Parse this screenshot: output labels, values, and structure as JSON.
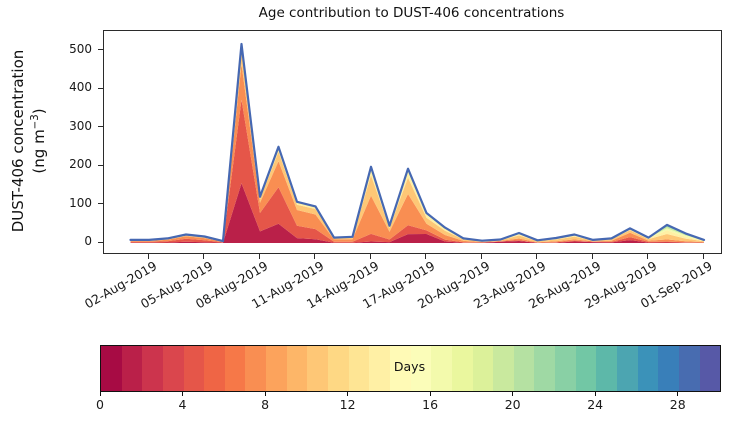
{
  "title": "Age contribution to DUST-406 concentrations",
  "ylabel": {
    "line1": "DUST-406 concentration",
    "unit_pre": "(ng m",
    "unit_sup": "−3",
    "unit_post": ")"
  },
  "chart_data": {
    "type": "area",
    "stacked": true,
    "title": "Age contribution to DUST-406 concentrations",
    "xlabel": "",
    "ylabel": "DUST-406 concentration (ng m⁻³)",
    "grid": false,
    "x": [
      "01-Aug-2019",
      "02-Aug-2019",
      "03-Aug-2019",
      "04-Aug-2019",
      "05-Aug-2019",
      "06-Aug-2019",
      "07-Aug-2019",
      "08-Aug-2019",
      "09-Aug-2019",
      "10-Aug-2019",
      "11-Aug-2019",
      "12-Aug-2019",
      "13-Aug-2019",
      "14-Aug-2019",
      "15-Aug-2019",
      "16-Aug-2019",
      "17-Aug-2019",
      "18-Aug-2019",
      "19-Aug-2019",
      "20-Aug-2019",
      "21-Aug-2019",
      "22-Aug-2019",
      "23-Aug-2019",
      "24-Aug-2019",
      "25-Aug-2019",
      "26-Aug-2019",
      "27-Aug-2019",
      "28-Aug-2019",
      "29-Aug-2019",
      "30-Aug-2019",
      "31-Aug-2019",
      "01-Sep-2019"
    ],
    "x_tick_labels": [
      "02-Aug-2019",
      "05-Aug-2019",
      "08-Aug-2019",
      "11-Aug-2019",
      "14-Aug-2019",
      "17-Aug-2019",
      "20-Aug-2019",
      "23-Aug-2019",
      "26-Aug-2019",
      "29-Aug-2019",
      "01-Sep-2019"
    ],
    "x_tick_indices": [
      1,
      4,
      7,
      10,
      13,
      16,
      19,
      22,
      25,
      28,
      31
    ],
    "x_tick_rotation_deg": 30,
    "yticks": [
      0,
      100,
      200,
      300,
      400,
      500
    ],
    "ylim": [
      -25,
      556
    ],
    "totals": [
      8,
      8,
      12,
      22,
      17,
      5,
      517,
      120,
      250,
      107,
      95,
      14,
      16,
      198,
      45,
      193,
      78,
      40,
      12,
      6,
      9,
      26,
      7,
      13,
      22,
      8,
      12,
      38,
      14,
      47,
      25,
      8
    ],
    "total_line_color": "#4668b2",
    "age_bin_edges_days": [
      0,
      3,
      6,
      9,
      12,
      15,
      18,
      21,
      24,
      27,
      30
    ],
    "age_fractions": [
      [
        0.1,
        0.25,
        0.3,
        0.2,
        0.1,
        0.05,
        0,
        0,
        0,
        0
      ],
      [
        0.1,
        0.25,
        0.3,
        0.2,
        0.1,
        0.05,
        0,
        0,
        0,
        0
      ],
      [
        0.1,
        0.3,
        0.3,
        0.2,
        0.05,
        0.05,
        0,
        0,
        0,
        0
      ],
      [
        0.15,
        0.35,
        0.3,
        0.12,
        0.05,
        0.03,
        0,
        0,
        0,
        0
      ],
      [
        0.12,
        0.3,
        0.33,
        0.15,
        0.06,
        0.04,
        0,
        0,
        0,
        0
      ],
      [
        0.1,
        0.25,
        0.35,
        0.2,
        0.06,
        0.04,
        0,
        0,
        0,
        0
      ],
      [
        0.3,
        0.42,
        0.18,
        0.06,
        0.03,
        0.01,
        0,
        0,
        0,
        0
      ],
      [
        0.25,
        0.4,
        0.22,
        0.08,
        0.04,
        0.01,
        0,
        0,
        0,
        0
      ],
      [
        0.2,
        0.38,
        0.27,
        0.1,
        0.04,
        0.01,
        0,
        0,
        0,
        0
      ],
      [
        0.12,
        0.3,
        0.38,
        0.13,
        0.05,
        0.02,
        0,
        0,
        0,
        0
      ],
      [
        0.1,
        0.28,
        0.4,
        0.15,
        0.05,
        0.02,
        0,
        0,
        0,
        0
      ],
      [
        0.05,
        0.2,
        0.4,
        0.2,
        0.1,
        0.05,
        0,
        0,
        0,
        0
      ],
      [
        0.05,
        0.15,
        0.4,
        0.25,
        0.1,
        0.05,
        0,
        0,
        0,
        0
      ],
      [
        0.02,
        0.1,
        0.5,
        0.27,
        0.06,
        0.03,
        0.01,
        0.01,
        0,
        0
      ],
      [
        0.05,
        0.15,
        0.45,
        0.22,
        0.07,
        0.03,
        0.02,
        0.01,
        0,
        0
      ],
      [
        0.12,
        0.12,
        0.42,
        0.22,
        0.07,
        0.03,
        0.01,
        0.01,
        0,
        0
      ],
      [
        0.3,
        0.12,
        0.22,
        0.2,
        0.1,
        0.04,
        0.01,
        0.01,
        0,
        0
      ],
      [
        0.1,
        0.12,
        0.3,
        0.28,
        0.12,
        0.05,
        0.02,
        0.01,
        0,
        0
      ],
      [
        0.06,
        0.1,
        0.3,
        0.3,
        0.14,
        0.06,
        0.03,
        0.01,
        0,
        0
      ],
      [
        0.1,
        0.1,
        0.25,
        0.3,
        0.15,
        0.06,
        0.03,
        0.01,
        0,
        0
      ],
      [
        0.35,
        0.1,
        0.15,
        0.2,
        0.12,
        0.05,
        0.02,
        0.01,
        0,
        0
      ],
      [
        0.2,
        0.08,
        0.17,
        0.3,
        0.13,
        0.07,
        0.03,
        0.02,
        0,
        0
      ],
      [
        0.05,
        0.08,
        0.17,
        0.4,
        0.2,
        0.06,
        0.02,
        0.02,
        0,
        0
      ],
      [
        0.05,
        0.08,
        0.2,
        0.37,
        0.2,
        0.06,
        0.02,
        0.02,
        0,
        0
      ],
      [
        0.18,
        0.1,
        0.15,
        0.32,
        0.13,
        0.07,
        0.03,
        0.02,
        0,
        0
      ],
      [
        0.3,
        0.12,
        0.15,
        0.23,
        0.12,
        0.05,
        0.02,
        0.01,
        0,
        0
      ],
      [
        0.12,
        0.12,
        0.25,
        0.28,
        0.14,
        0.05,
        0.02,
        0.02,
        0,
        0
      ],
      [
        0.2,
        0.2,
        0.3,
        0.18,
        0.07,
        0.03,
        0.01,
        0.01,
        0,
        0
      ],
      [
        0.08,
        0.12,
        0.22,
        0.3,
        0.15,
        0.08,
        0.03,
        0.02,
        0,
        0
      ],
      [
        0.03,
        0.05,
        0.12,
        0.3,
        0.2,
        0.12,
        0.08,
        0.05,
        0.03,
        0.02
      ],
      [
        0.03,
        0.05,
        0.1,
        0.28,
        0.2,
        0.13,
        0.09,
        0.06,
        0.04,
        0.02
      ],
      [
        0.05,
        0.08,
        0.15,
        0.3,
        0.18,
        0.1,
        0.06,
        0.04,
        0.02,
        0.02
      ]
    ],
    "colormap_anchors": [
      "#9e0142",
      "#d53e4f",
      "#f46d43",
      "#fdae61",
      "#fee08b",
      "#ffffbf",
      "#e6f598",
      "#abdda4",
      "#66c2a5",
      "#3288bd",
      "#5e4fa2"
    ],
    "colorbar": {
      "label": "Days",
      "ticks": [
        0,
        4,
        8,
        12,
        16,
        20,
        24,
        28
      ],
      "vmin": 0,
      "vmax": 30,
      "segments": 30,
      "position": "bottom"
    }
  }
}
